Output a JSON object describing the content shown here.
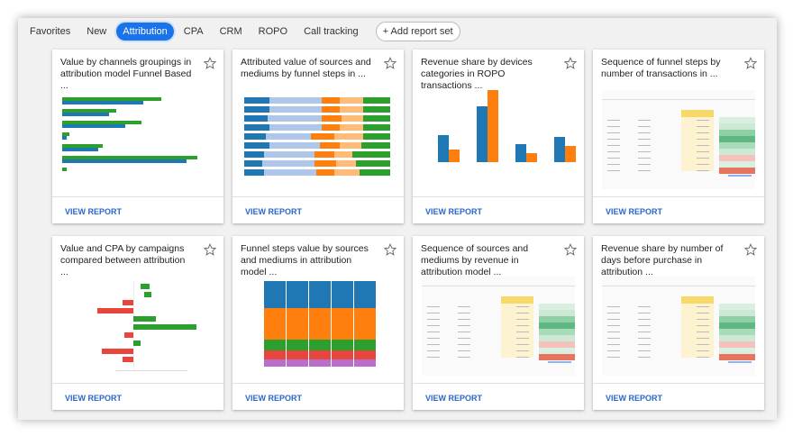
{
  "tabs": [
    "Favorites",
    "New",
    "Attribution",
    "CPA",
    "CRM",
    "ROPO",
    "Call tracking"
  ],
  "active_tab": "Attribution",
  "add_report": "Add report set",
  "cards": [
    {
      "title": "Value by channels groupings in attribution model Funnel Based ...",
      "action": "VIEW REPORT"
    },
    {
      "title": "Attributed value of sources and mediums by funnel steps in ...",
      "action": "VIEW REPORT"
    },
    {
      "title": "Revenue share by devices categories in ROPO transactions ...",
      "action": "VIEW REPORT"
    },
    {
      "title": "Sequence of funnel steps by number of transactions in ...",
      "action": "VIEW REPORT"
    },
    {
      "title": "Value and CPA by campaigns compared between attribution ...",
      "action": "VIEW REPORT"
    },
    {
      "title": "Funnel steps value by sources and mediums in attribution model ...",
      "action": "VIEW REPORT"
    },
    {
      "title": "Sequence of sources and mediums by revenue in attribution model ...",
      "action": "VIEW REPORT"
    },
    {
      "title": "Revenue share by number of days before purchase in attribution ...",
      "action": "VIEW REPORT"
    }
  ]
}
